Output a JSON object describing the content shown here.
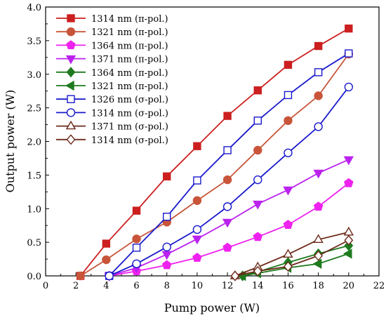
{
  "chart_data": {
    "type": "line",
    "title": "",
    "xlabel": "Pump power (W)",
    "ylabel": "Output power (W)",
    "xlim": [
      0,
      22
    ],
    "ylim": [
      0,
      4.0
    ],
    "xticks": [
      0,
      2,
      4,
      6,
      8,
      10,
      12,
      14,
      16,
      18,
      20,
      22
    ],
    "yticks": [
      0.0,
      0.5,
      1.0,
      1.5,
      2.0,
      2.5,
      3.0,
      3.5,
      4.0
    ],
    "ytick_labels": [
      "0.0",
      "0.5",
      "1.0",
      "1.5",
      "2.0",
      "2.5",
      "3.0",
      "3.5",
      "4.0"
    ],
    "grid": false,
    "legend_position": "top-left",
    "series": [
      {
        "name": "1314 nm (π-pol.)",
        "color": "#cc1f1f",
        "marker": "square",
        "filled": true,
        "x": [
          2.3,
          4,
          6,
          8,
          10,
          12,
          14,
          16,
          18,
          20
        ],
        "y": [
          0.0,
          0.48,
          0.97,
          1.48,
          1.93,
          2.38,
          2.76,
          3.14,
          3.42,
          3.68
        ]
      },
      {
        "name": "1321 nm (π-pol.)",
        "color": "#c8553a",
        "marker": "circle",
        "filled": true,
        "x": [
          2.3,
          4,
          6,
          8,
          10,
          12,
          14,
          16,
          18,
          20
        ],
        "y": [
          0.0,
          0.24,
          0.55,
          0.8,
          1.12,
          1.43,
          1.87,
          2.31,
          2.68,
          3.3
        ]
      },
      {
        "name": "1364 nm (π-pol.)",
        "color": "#ee22ee",
        "marker": "pentagon",
        "filled": true,
        "x": [
          4.2,
          6,
          8,
          10,
          12,
          14,
          16,
          18,
          20
        ],
        "y": [
          0.0,
          0.07,
          0.16,
          0.27,
          0.42,
          0.58,
          0.76,
          1.03,
          1.38
        ]
      },
      {
        "name": "1371 nm (π-pol.)",
        "color": "#bb22ee",
        "marker": "triangle-down",
        "filled": true,
        "x": [
          4.2,
          6,
          8,
          10,
          12,
          14,
          16,
          18,
          20
        ],
        "y": [
          0.0,
          0.12,
          0.32,
          0.55,
          0.8,
          1.07,
          1.28,
          1.53,
          1.73
        ]
      },
      {
        "name": "1364 nm (π-pol.)",
        "color": "#1e7a1e",
        "marker": "diamond",
        "filled": true,
        "x": [
          13.0,
          14,
          16,
          18,
          20
        ],
        "y": [
          0.0,
          0.06,
          0.2,
          0.33,
          0.45
        ]
      },
      {
        "name": "1321 nm (π-pol.)",
        "color": "#1e7a1e",
        "marker": "triangle-left",
        "filled": true,
        "x": [
          13.0,
          14,
          16,
          18,
          20
        ],
        "y": [
          0.0,
          0.04,
          0.12,
          0.18,
          0.33
        ]
      },
      {
        "name": "1326 nm (σ-pol.)",
        "color": "#1a1acc",
        "marker": "square",
        "filled": false,
        "x": [
          4.2,
          6,
          8,
          10,
          12,
          14,
          16,
          18,
          20
        ],
        "y": [
          0.0,
          0.42,
          0.88,
          1.42,
          1.87,
          2.31,
          2.69,
          3.03,
          3.31
        ]
      },
      {
        "name": "1314 nm (σ-pol.)",
        "color": "#1a1acc",
        "marker": "circle",
        "filled": false,
        "x": [
          4.2,
          6,
          8,
          10,
          12,
          14,
          16,
          18,
          20
        ],
        "y": [
          0.0,
          0.18,
          0.43,
          0.69,
          1.03,
          1.43,
          1.83,
          2.22,
          2.81
        ]
      },
      {
        "name": "1371 nm (σ-pol.)",
        "color": "#6b2a1a",
        "marker": "triangle",
        "filled": false,
        "x": [
          12.5,
          14,
          16,
          18,
          20
        ],
        "y": [
          0.0,
          0.13,
          0.32,
          0.54,
          0.65
        ]
      },
      {
        "name": "1314 nm (σ-pol.)",
        "color": "#6b2a1a",
        "marker": "diamond",
        "filled": false,
        "x": [
          12.5,
          14,
          16,
          18,
          20
        ],
        "y": [
          0.0,
          0.07,
          0.14,
          0.3,
          0.53
        ]
      }
    ]
  }
}
